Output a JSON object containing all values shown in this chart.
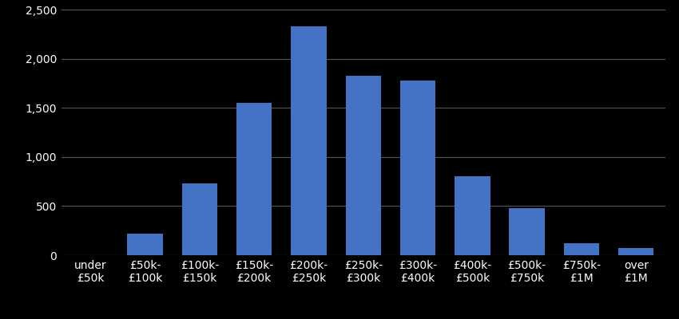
{
  "categories": [
    "under\n£50k",
    "£50k-\n£100k",
    "£100k-\n£150k",
    "£150k-\n£200k",
    "£200k-\n£250k",
    "£250k-\n£300k",
    "£300k-\n£400k",
    "£400k-\n£500k",
    "£500k-\n£750k",
    "£750k-\n£1M",
    "over\n£1M"
  ],
  "values": [
    2,
    220,
    730,
    1550,
    2330,
    1830,
    1780,
    800,
    480,
    120,
    70
  ],
  "bar_color": "#4472c4",
  "background_color": "#000000",
  "text_color": "#ffffff",
  "grid_color": "#555555",
  "ylim": [
    0,
    2500
  ],
  "yticks": [
    0,
    500,
    1000,
    1500,
    2000,
    2500
  ],
  "tick_fontsize": 10,
  "bar_width": 0.65
}
